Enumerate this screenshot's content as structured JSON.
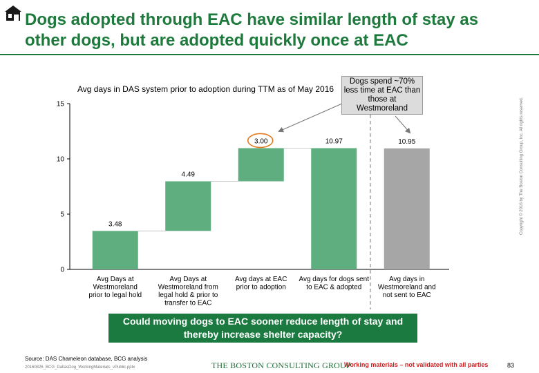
{
  "slide": {
    "title": "Dogs adopted through EAC have similar length of stay as other dogs, but are adopted quickly once at EAC",
    "chart_heading": "Avg days in DAS system prior to adoption during TTM as of May 2016",
    "callout": "Dogs spend ~70% less time at EAC than those at Westmoreland",
    "banner": "Could moving dogs to EAC sooner reduce length of stay and thereby increase shelter capacity?",
    "source": "Source: DAS Chameleon database, BCG analysis",
    "filename": "20160826_BCG_DallasDog_WorkingMaterials_vPublic.pptx",
    "brand": "THE BOSTON CONSULTING GROUP",
    "working_note": "Working materials – not validated with all parties",
    "page_number": "83",
    "copyright": "Copyright © 2016 by The Boston Consulting Group, Inc. All rights reserved."
  },
  "colors": {
    "title_green": "#1e7a3c",
    "bar_green": "#5fae7f",
    "bar_grey": "#a6a6a6",
    "highlight_circle": "#e07b20",
    "banner_green": "#1a7a40",
    "warning_red": "#cc1f1f"
  },
  "chart_data": {
    "type": "waterfall",
    "title": "Avg days in DAS system prior to adoption during TTM as of May 2016",
    "ylim": [
      0,
      15
    ],
    "yticks": [
      0,
      5,
      10,
      15
    ],
    "bars": [
      {
        "label": [
          "Avg Days at",
          "Westmoreland",
          "prior to legal hold"
        ],
        "start": 0,
        "value": 3.48,
        "value_label": "3.48",
        "color": "green"
      },
      {
        "label": [
          "Avg Days at",
          "Westmoreland from",
          "legal hold & prior to",
          "transfer to EAC"
        ],
        "start": 3.48,
        "value": 4.49,
        "value_label": "4.49",
        "color": "green"
      },
      {
        "label": [
          "Avg days at EAC",
          "prior to adoption"
        ],
        "start": 7.97,
        "value": 3.0,
        "value_label": "3.00",
        "color": "green",
        "highlighted": true
      },
      {
        "label": [
          "Avg days for dogs sent",
          "to EAC & adopted"
        ],
        "start": 0,
        "value": 10.97,
        "value_label": "10.97",
        "color": "green"
      },
      {
        "label": [
          "Avg days in",
          "Westmoreland and",
          "not sent to EAC"
        ],
        "start": 0,
        "value": 10.95,
        "value_label": "10.95",
        "color": "grey"
      }
    ]
  }
}
